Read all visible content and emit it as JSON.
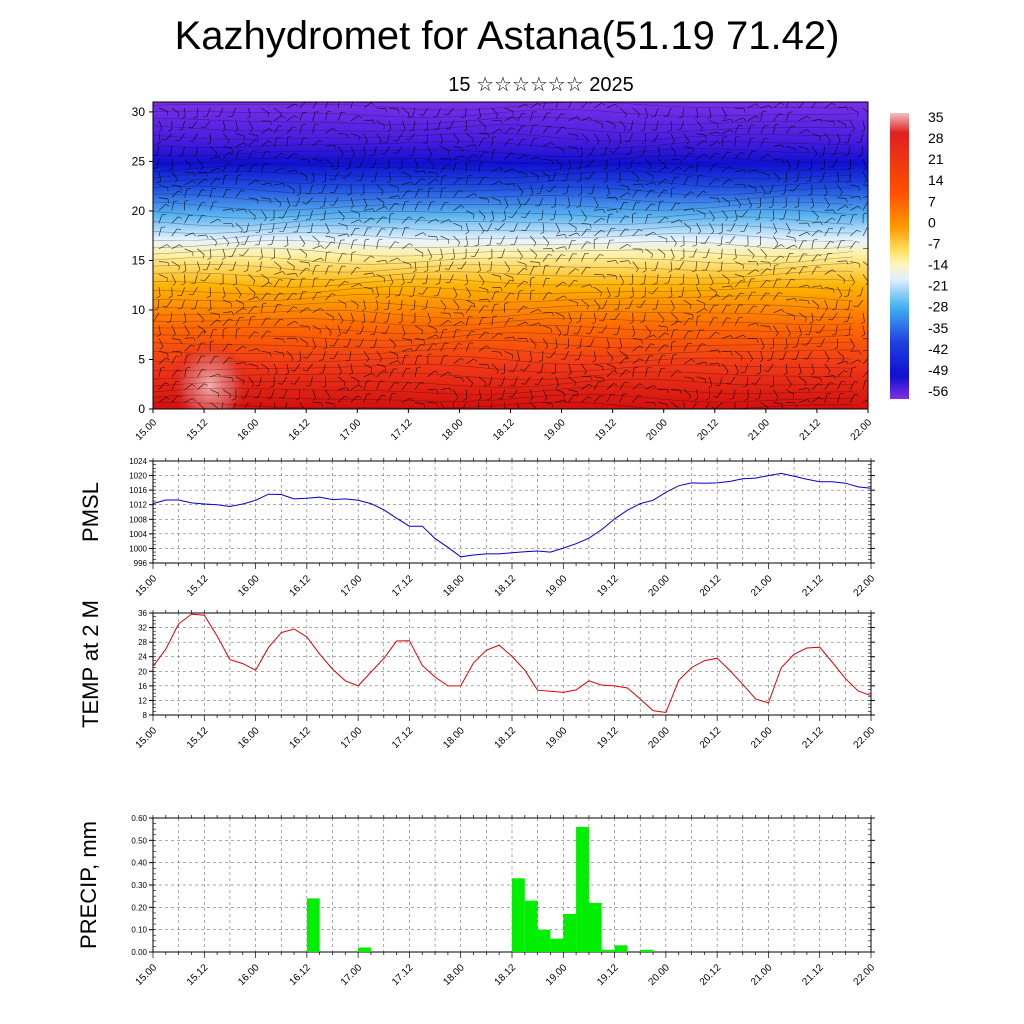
{
  "title": "Kazhydromet for Astana(51.19 71.42)",
  "subtitle": "15 ☆☆☆☆☆☆ 2025",
  "colors": {
    "pmsl": "#0000cc",
    "temp": "#dd0000",
    "precip": "#00ee00"
  },
  "chart_data": [
    {
      "type": "heatmap",
      "x_tick_labels": [
        "15.00",
        "15.12",
        "16.00",
        "16.12",
        "17.00",
        "17.12",
        "18.00",
        "18.12",
        "19.00",
        "19.12",
        "20.00",
        "20.12",
        "21.00",
        "21.12",
        "22.00"
      ],
      "y_tick_labels": [
        "0",
        "5",
        "10",
        "15",
        "20",
        "25",
        "30"
      ],
      "ylim": [
        0,
        31
      ],
      "colorbar_labels": [
        "35",
        "28",
        "21",
        "14",
        "7",
        "0",
        "-7",
        "-14",
        "-21",
        "-28",
        "-35",
        "-42",
        "-49",
        "-56"
      ],
      "colorbar_range": [
        -56,
        35
      ],
      "wind_barbs": true
    },
    {
      "type": "line",
      "ylabel": "PMSL",
      "y_tick_labels": [
        "996",
        "1000",
        "1004",
        "1008",
        "1012",
        "1016",
        "1020",
        "1024"
      ],
      "ylim": [
        996,
        1024
      ],
      "x_tick_labels": [
        "15.00",
        "15.12",
        "16.00",
        "16.12",
        "17.00",
        "17.12",
        "18.00",
        "18.12",
        "19.00",
        "19.12",
        "20.00",
        "20.12",
        "21.00",
        "21.12",
        "22.00"
      ],
      "x": [
        0,
        3,
        6,
        9,
        12,
        15,
        18,
        21,
        24,
        27,
        30,
        33,
        36,
        39,
        42,
        45,
        48,
        51,
        54,
        57,
        60,
        63,
        66,
        69,
        72,
        75,
        78,
        81,
        84,
        87,
        90,
        93,
        96,
        99,
        102,
        105,
        108,
        111,
        114,
        117,
        120,
        123,
        126,
        129,
        132,
        135,
        138,
        141,
        144,
        147,
        150,
        153,
        156,
        159,
        162,
        165,
        168
      ],
      "values": [
        1012.3,
        1013.3,
        1013.3,
        1012.5,
        1012.2,
        1012.0,
        1011.5,
        1012.2,
        1013.2,
        1014.9,
        1014.8,
        1013.6,
        1013.8,
        1014.1,
        1013.4,
        1013.6,
        1013.2,
        1012.3,
        1010.6,
        1008.3,
        1006.1,
        1006.1,
        1002.7,
        1000.3,
        997.7,
        998.2,
        998.5,
        998.5,
        998.8,
        999.1,
        999.3,
        999.0,
        1000.1,
        1001.3,
        1002.8,
        1005.2,
        1008.1,
        1010.5,
        1012.3,
        1013.2,
        1015.4,
        1017.2,
        1018.0,
        1017.9,
        1018.0,
        1018.4,
        1019.1,
        1019.3,
        1020.0,
        1020.6,
        1019.8,
        1019.0,
        1018.3,
        1018.3,
        1017.9,
        1016.9,
        1016.5
      ],
      "grid": true
    },
    {
      "type": "line",
      "ylabel": "TEMP at 2 M",
      "y_tick_labels": [
        "8",
        "12",
        "16",
        "20",
        "24",
        "28",
        "32",
        "36"
      ],
      "ylim": [
        8,
        36
      ],
      "x_tick_labels": [
        "15.00",
        "15.12",
        "16.00",
        "16.12",
        "17.00",
        "17.12",
        "18.00",
        "18.12",
        "19.00",
        "19.12",
        "20.00",
        "20.12",
        "21.00",
        "21.12",
        "22.00"
      ],
      "x": [
        0,
        3,
        6,
        9,
        12,
        15,
        18,
        21,
        24,
        27,
        30,
        33,
        36,
        39,
        42,
        45,
        48,
        51,
        54,
        57,
        60,
        63,
        66,
        69,
        72,
        75,
        78,
        81,
        84,
        87,
        90,
        93,
        96,
        99,
        102,
        105,
        108,
        111,
        114,
        117,
        120,
        123,
        126,
        129,
        132,
        135,
        138,
        141,
        144,
        147,
        150,
        153,
        156,
        159,
        162,
        165,
        168
      ],
      "values": [
        21.3,
        26.1,
        33.0,
        35.7,
        35.4,
        29.7,
        23.2,
        22.1,
        20.3,
        26.5,
        30.6,
        31.6,
        29.4,
        24.7,
        20.6,
        17.4,
        16.0,
        19.8,
        23.5,
        28.3,
        28.4,
        21.6,
        18.4,
        16.0,
        16.0,
        22.3,
        25.8,
        27.2,
        24.1,
        20.3,
        14.8,
        14.5,
        14.2,
        14.9,
        17.4,
        16.2,
        16.0,
        15.4,
        12.4,
        9.2,
        8.7,
        17.5,
        21.0,
        22.9,
        23.6,
        20.2,
        16.4,
        12.4,
        11.3,
        21.0,
        24.7,
        26.4,
        26.6,
        22.4,
        18.0,
        14.6,
        13.3
      ],
      "grid": true
    },
    {
      "type": "bar",
      "ylabel": "PRECIP, mm",
      "y_tick_labels": [
        "0.00",
        "0.10",
        "0.20",
        "0.30",
        "0.40",
        "0.50",
        "0.60"
      ],
      "ylim": [
        0,
        0.6
      ],
      "x_tick_labels": [
        "15.00",
        "15.12",
        "16.00",
        "16.12",
        "17.00",
        "17.12",
        "18.00",
        "18.12",
        "19.00",
        "19.12",
        "20.00",
        "20.12",
        "21.00",
        "21.12",
        "22.00"
      ],
      "x": [
        36,
        48,
        84,
        87,
        90,
        93,
        96,
        99,
        102,
        105,
        108,
        114
      ],
      "values": [
        0.24,
        0.02,
        0.33,
        0.23,
        0.1,
        0.06,
        0.17,
        0.56,
        0.22,
        0.01,
        0.03,
        0.01
      ],
      "grid": true
    }
  ]
}
